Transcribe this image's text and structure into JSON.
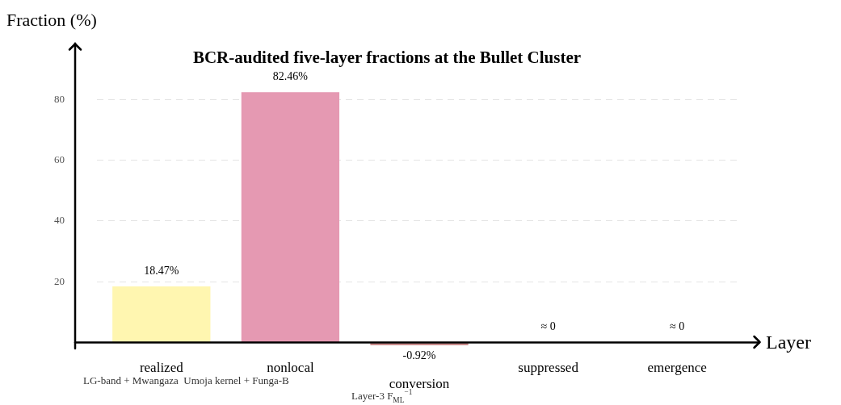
{
  "chart_data": {
    "type": "bar",
    "title": "BCR-audited five-layer fractions at the Bullet Cluster",
    "xlabel": "Layer",
    "ylabel": "Fraction (%)",
    "categories": [
      "realized",
      "nonlocal",
      "conversion",
      "suppressed",
      "emergence"
    ],
    "values": [
      18.47,
      82.46,
      -0.92,
      0,
      0
    ],
    "colors": [
      "#fff6b0",
      "#e599b2",
      "#c98b8b",
      "#d9d9d9",
      "#d9d9d9"
    ],
    "value_labels": [
      "18.47%",
      "82.46%",
      "-0.92%",
      "≈ 0",
      "≈ 0"
    ],
    "ylim": [
      -2,
      98
    ],
    "yticks": [
      20,
      40,
      60,
      80
    ],
    "grid": "y",
    "annotations": [
      "LG-band + Mwangaza  Umoja kernel + Funga-B",
      "Layer-3 F$_{ML}$$^{−1}$"
    ]
  }
}
